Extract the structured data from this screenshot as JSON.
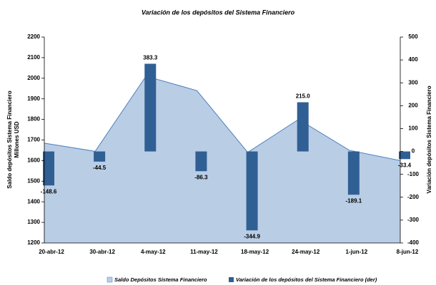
{
  "chart_data": {
    "type": "bar+area",
    "title": "Variación de los depósitos del Sistema Financiero",
    "y_label": [
      "Saldo depósitos Sistema Financiero",
      "Millones USD"
    ],
    "y2_label": "Variación depósitos Sistema Financiero",
    "categories": [
      "20-abr-12",
      "30-abr-12",
      "4-may-12",
      "11-may-12",
      "18-may-12",
      "24-may-12",
      "1-jun-12",
      "8-jun-12"
    ],
    "series": [
      {
        "name": "Saldo Depósitos Sistema Financiero",
        "type": "area",
        "color": "#b9cde5",
        "line_color": "#4f81bd",
        "values": [
          1685,
          1645,
          2010,
          1940,
          1640,
          1800,
          1650,
          1600
        ]
      },
      {
        "name": "Variación de los depósitos del Sistema Financiero (der)",
        "type": "bar",
        "axis": "y2",
        "color": "#305f94",
        "values": [
          -148.6,
          -44.5,
          383.3,
          -86.3,
          -344.9,
          215.0,
          -189.1,
          -33.4
        ],
        "value_labels": [
          "-148.6",
          "-44.5",
          "383.3",
          "-86.3",
          "-344.9",
          "215.0",
          "-189.1",
          "-33.4"
        ]
      }
    ],
    "ylim": [
      1200,
      2200
    ],
    "yticks": [
      1200,
      1300,
      1400,
      1500,
      1600,
      1700,
      1800,
      1900,
      2000,
      2100,
      2200
    ],
    "y2lim": [
      -400,
      500
    ],
    "y2ticks": [
      -400,
      -300,
      -200,
      -100,
      0,
      100,
      200,
      300,
      400,
      500
    ],
    "legend": "bottom"
  }
}
